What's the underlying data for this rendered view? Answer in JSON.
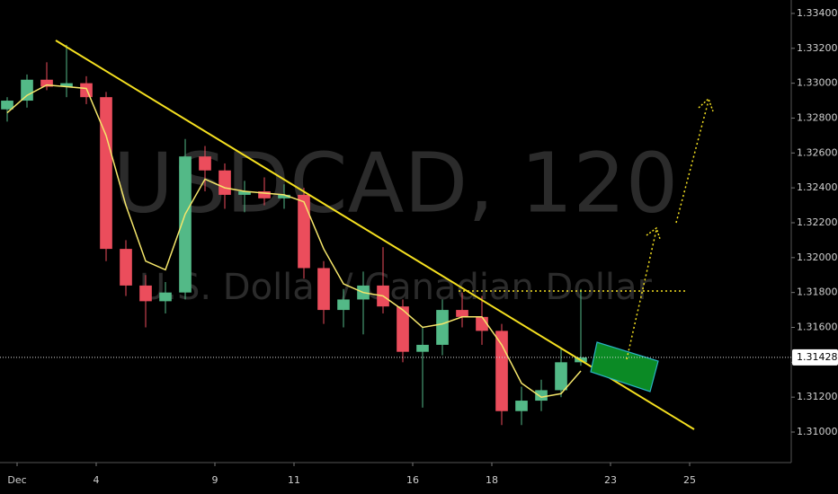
{
  "chart_data": {
    "type": "candlestick",
    "title": "USDCAD, 120",
    "subtitle": "U.S. Dollar / Canadian Dollar",
    "x": [
      -0.25,
      0.25,
      0.75,
      1.25,
      1.75,
      2.25,
      2.75,
      3.25,
      3.75,
      4.25,
      4.75,
      5.25,
      5.75,
      6.25,
      6.75,
      7.25,
      7.75,
      8.25,
      8.75,
      9.25,
      9.75,
      10.25,
      10.75,
      11.25,
      11.75,
      12.25,
      12.75,
      13.25,
      13.75,
      14.25
    ],
    "open": [
      1.3285,
      1.329,
      1.3302,
      1.3298,
      1.33,
      1.3292,
      1.3205,
      1.3184,
      1.3175,
      1.318,
      1.3258,
      1.325,
      1.3236,
      1.3238,
      1.3234,
      1.3236,
      1.3194,
      1.317,
      1.3176,
      1.3184,
      1.3172,
      1.3146,
      1.315,
      1.317,
      1.3166,
      1.3158,
      1.3112,
      1.3118,
      1.3124,
      1.314
    ],
    "high": [
      1.3292,
      1.3305,
      1.3312,
      1.3322,
      1.3304,
      1.3295,
      1.321,
      1.319,
      1.3186,
      1.3268,
      1.3264,
      1.3254,
      1.3244,
      1.3246,
      1.3242,
      1.324,
      1.3198,
      1.3182,
      1.3192,
      1.3206,
      1.3176,
      1.316,
      1.3176,
      1.318,
      1.3178,
      1.3162,
      1.3126,
      1.313,
      1.3148,
      1.3182
    ],
    "low": [
      1.3278,
      1.3286,
      1.3296,
      1.3292,
      1.3288,
      1.3198,
      1.3178,
      1.316,
      1.3168,
      1.3176,
      1.3238,
      1.3228,
      1.3226,
      1.323,
      1.3228,
      1.3188,
      1.3162,
      1.316,
      1.3156,
      1.3168,
      1.314,
      1.3114,
      1.3144,
      1.316,
      1.315,
      1.3104,
      1.3104,
      1.3112,
      1.312,
      1.3138
    ],
    "close": [
      1.329,
      1.3302,
      1.3298,
      1.33,
      1.3292,
      1.3205,
      1.3184,
      1.3175,
      1.318,
      1.3258,
      1.325,
      1.3236,
      1.3238,
      1.3234,
      1.3236,
      1.3194,
      1.317,
      1.3176,
      1.3184,
      1.3172,
      1.3146,
      1.315,
      1.317,
      1.3166,
      1.3158,
      1.3112,
      1.3118,
      1.3124,
      1.314,
      1.31428
    ],
    "up_color": "#53b987",
    "down_color": "#eb4d5c",
    "overlay": {
      "color": "#f5e66a",
      "values": [
        1.3283,
        1.3293,
        1.3299,
        1.3298,
        1.3297,
        1.327,
        1.323,
        1.3198,
        1.3193,
        1.3225,
        1.3245,
        1.324,
        1.3238,
        1.3237,
        1.3236,
        1.3232,
        1.3205,
        1.3185,
        1.318,
        1.3178,
        1.317,
        1.316,
        1.3162,
        1.3166,
        1.3166,
        1.315,
        1.3128,
        1.312,
        1.3122,
        1.3135
      ]
    },
    "last_price": {
      "value": 1.31428,
      "label": "1.31428"
    },
    "xlim": [
      -0.432,
      19.568
    ],
    "ylim": [
      1.30825,
      1.33477
    ],
    "xticks": [
      {
        "value": 0,
        "label": "Dec"
      },
      {
        "value": 2,
        "label": "4"
      },
      {
        "value": 5,
        "label": "9"
      },
      {
        "value": 7,
        "label": "11"
      },
      {
        "value": 10,
        "label": "16"
      },
      {
        "value": 12,
        "label": "18"
      },
      {
        "value": 15,
        "label": "23"
      },
      {
        "value": 17,
        "label": "25"
      }
    ],
    "yticks": [
      {
        "value": 1.31,
        "label": "1.31000"
      },
      {
        "value": 1.312,
        "label": "1.31200"
      },
      {
        "value": 1.314,
        "label": "1.31400"
      },
      {
        "value": 1.316,
        "label": "1.31600"
      },
      {
        "value": 1.318,
        "label": "1.31800"
      },
      {
        "value": 1.32,
        "label": "1.32000"
      },
      {
        "value": 1.322,
        "label": "1.32200"
      },
      {
        "value": 1.324,
        "label": "1.32400"
      },
      {
        "value": 1.326,
        "label": "1.32600"
      },
      {
        "value": 1.328,
        "label": "1.32800"
      },
      {
        "value": 1.33,
        "label": "1.33000"
      },
      {
        "value": 1.332,
        "label": "1.33200"
      },
      {
        "value": 1.334,
        "label": "1.33400"
      }
    ]
  }
}
